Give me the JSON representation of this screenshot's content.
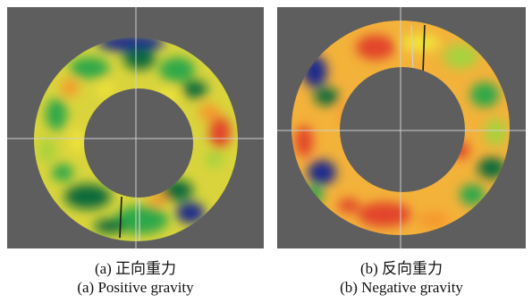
{
  "figures": [
    {
      "id": "a",
      "caption_zh": "(a) 正向重力",
      "caption_en": "(a) Positive gravity",
      "colors": {
        "background": "#5e5e5e",
        "crosshair": "#cfcfcf",
        "ring_base": "#d7d23a"
      }
    },
    {
      "id": "b",
      "caption_zh": "(b) 反向重力",
      "caption_en": "(b) Negative gravity",
      "colors": {
        "background": "#5e5e5e",
        "crosshair": "#cfcfcf",
        "ring_base": "#f1a33a"
      }
    }
  ],
  "colormap": [
    "#1f2c8c",
    "#0f6a3a",
    "#2ea84a",
    "#a8d23c",
    "#f0e33a",
    "#f59a2d",
    "#e2442a"
  ]
}
